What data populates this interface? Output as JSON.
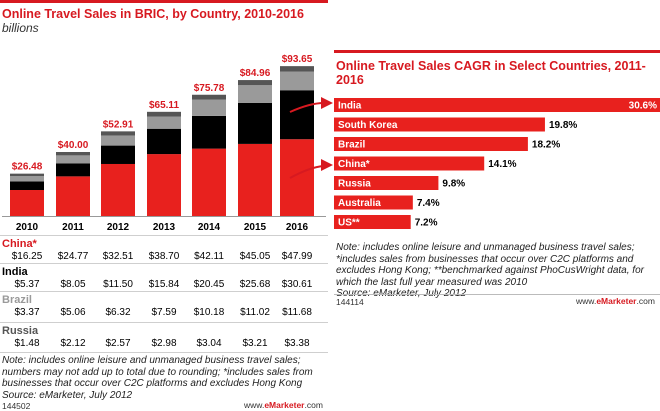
{
  "left": {
    "title": "Online Travel Sales in BRIC, by Country, 2010-2016",
    "subtitle": "billions",
    "note": "Note: includes online leisure and unmanaged business travel sales; numbers may not add up to total due to rounding; *includes sales from businesses that occur over C2C platforms and excludes Hong Kong",
    "source": "Source: eMarketer, July 2012",
    "id": "144502",
    "brand_prefix": "www.",
    "brand_name": "eMarketer",
    "brand_suffix": ".com"
  },
  "right": {
    "title": "Online Travel Sales CAGR in Select Countries, 2011-2016",
    "note": "Note: includes online leisure and unmanaged business travel sales; *includes sales from businesses that occur over C2C platforms and excludes Hong Kong; **benchmarked against PhoCusWright data, for which the last full year measured was 2010",
    "source": "Source: eMarketer, July 2012",
    "id": "144114",
    "brand_prefix": "www.",
    "brand_name": "eMarketer",
    "brand_suffix": ".com"
  },
  "colors": {
    "china": "#e8211e",
    "india": "#000000",
    "brazil": "#9a9a9a",
    "russia": "#555555",
    "accent": "#d71920"
  },
  "chart_data": [
    {
      "type": "bar",
      "stacked": true,
      "categories": [
        "2010",
        "2011",
        "2012",
        "2013",
        "2014",
        "2015",
        "2016"
      ],
      "totals": [
        "$26.48",
        "$40.00",
        "$52.91",
        "$65.11",
        "$75.78",
        "$84.96",
        "$93.65"
      ],
      "total_values": [
        26.48,
        40.0,
        52.91,
        65.11,
        75.78,
        84.96,
        93.65
      ],
      "series": [
        {
          "name": "China*",
          "color": "#e8211e",
          "values": [
            16.25,
            24.77,
            32.51,
            38.7,
            42.11,
            45.05,
            47.99
          ],
          "labels": [
            "$16.25",
            "$24.77",
            "$32.51",
            "$38.70",
            "$42.11",
            "$45.05",
            "$47.99"
          ]
        },
        {
          "name": "India",
          "color": "#000000",
          "values": [
            5.37,
            8.05,
            11.5,
            15.84,
            20.45,
            25.68,
            30.61
          ],
          "labels": [
            "$5.37",
            "$8.05",
            "$11.50",
            "$15.84",
            "$20.45",
            "$25.68",
            "$30.61"
          ]
        },
        {
          "name": "Brazil",
          "color": "#9a9a9a",
          "values": [
            3.37,
            5.06,
            6.32,
            7.59,
            10.18,
            11.02,
            11.68
          ],
          "labels": [
            "$3.37",
            "$5.06",
            "$6.32",
            "$7.59",
            "$10.18",
            "$11.02",
            "$11.68"
          ]
        },
        {
          "name": "Russia",
          "color": "#555555",
          "values": [
            1.48,
            2.12,
            2.57,
            2.98,
            3.04,
            3.21,
            3.38
          ],
          "labels": [
            "$1.48",
            "$2.12",
            "$2.57",
            "$2.98",
            "$3.04",
            "$3.21",
            "$3.38"
          ]
        }
      ],
      "ylim": [
        0,
        100
      ]
    },
    {
      "type": "bar",
      "orientation": "horizontal",
      "categories": [
        "India",
        "South Korea",
        "Brazil",
        "China*",
        "Russia",
        "Australia",
        "US**"
      ],
      "values": [
        30.6,
        19.8,
        18.2,
        14.1,
        9.8,
        7.4,
        7.2
      ],
      "labels": [
        "30.6%",
        "19.8%",
        "18.2%",
        "14.1%",
        "9.8%",
        "7.4%",
        "7.2%"
      ],
      "highlighted": [
        "India",
        "China*"
      ],
      "color": "#e8211e",
      "xlim": [
        0,
        30.6
      ]
    }
  ]
}
